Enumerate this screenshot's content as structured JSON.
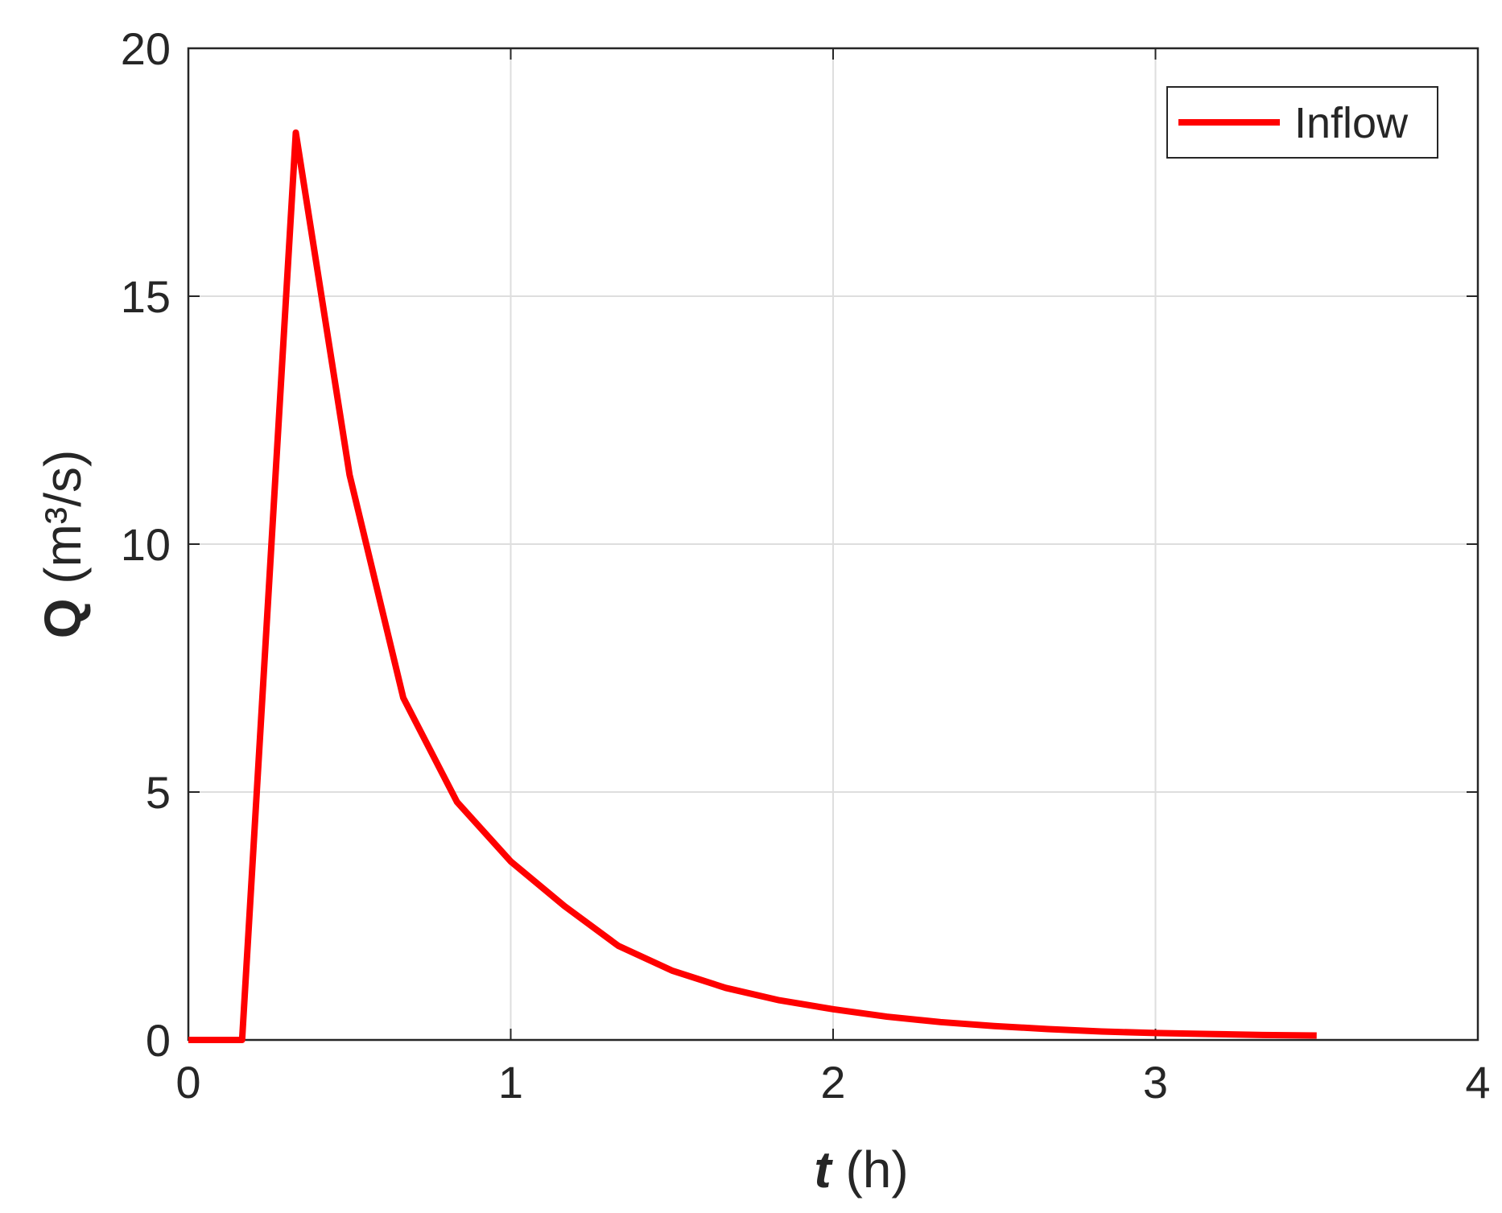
{
  "chart_data": {
    "type": "line",
    "ylabel_symbol": "Q",
    "ylabel_unit": "(m³/s)",
    "xlabel_symbol": "t",
    "xlabel_unit": "(h)",
    "x": [
      0,
      0.1667,
      0.3333,
      0.5,
      0.6667,
      0.8333,
      1.0,
      1.1667,
      1.3333,
      1.5,
      1.6667,
      1.8333,
      2.0,
      2.1667,
      2.3333,
      2.5,
      2.6667,
      2.8333,
      3.0,
      3.1667,
      3.3333,
      3.5
    ],
    "series": [
      {
        "name": "Inflow",
        "color": "#ff0000",
        "values": [
          0,
          0,
          18.3,
          11.4,
          6.9,
          4.8,
          3.6,
          2.7,
          1.9,
          1.4,
          1.05,
          0.8,
          0.62,
          0.47,
          0.36,
          0.28,
          0.22,
          0.17,
          0.14,
          0.12,
          0.1,
          0.09
        ]
      }
    ],
    "xlim": [
      0,
      4
    ],
    "xticks": [
      0,
      1,
      2,
      3,
      4
    ],
    "ylim": [
      0,
      20
    ],
    "yticks": [
      0,
      5,
      10,
      15,
      20
    ],
    "grid": true,
    "legend": "upper-right"
  }
}
